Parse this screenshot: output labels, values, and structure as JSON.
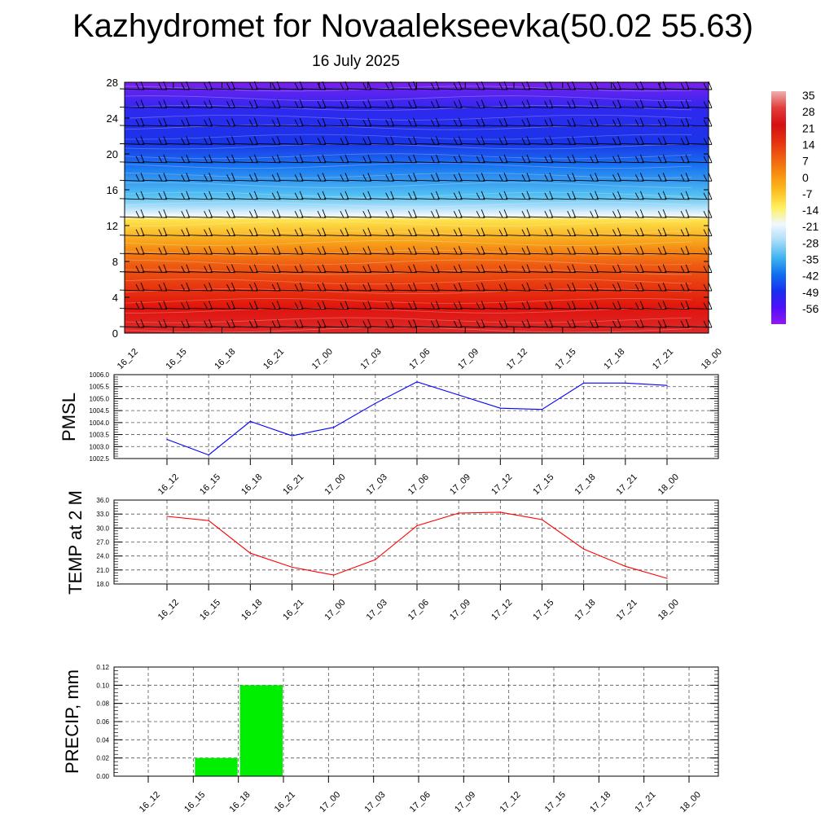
{
  "title": "Kazhydromet for Novaalekseevka(50.02 55.63)",
  "subtitle": "16 July 2025",
  "chart_data": [
    {
      "type": "heatmap",
      "x_ticks": [
        "16_12",
        "16_15",
        "16_18",
        "16_21",
        "17_00",
        "17_03",
        "17_06",
        "17_09",
        "17_12",
        "17_15",
        "17_18",
        "17_21",
        "18_00"
      ],
      "y_ticks": [
        "0",
        "4",
        "8",
        "12",
        "16",
        "20",
        "24",
        "28"
      ],
      "ylim": [
        0,
        28
      ],
      "colorbar": {
        "labels": [
          "35",
          "28",
          "21",
          "14",
          "7",
          "0",
          "-7",
          "-14",
          "-21",
          "-28",
          "-35",
          "-42",
          "-49",
          "-56"
        ],
        "stops": [
          "#f0b0b0",
          "#e33c3c",
          "#d41010",
          "#e43010",
          "#f06010",
          "#f89010",
          "#fcc020",
          "#fff060",
          "#f0f8ff",
          "#a8dcf8",
          "#40b4f0",
          "#1070f0",
          "#1830f0",
          "#5010f8",
          "#9018f0"
        ]
      },
      "layers": [
        {
          "height_ratio": 0.0,
          "color": "#dd2a2a"
        },
        {
          "height_ratio": 0.1,
          "color": "#e0140e"
        },
        {
          "height_ratio": 0.27,
          "color": "#ee5a10"
        },
        {
          "height_ratio": 0.36,
          "color": "#f7a018"
        },
        {
          "height_ratio": 0.45,
          "color": "#fde24a"
        },
        {
          "height_ratio": 0.47,
          "color": "#eef6fe"
        },
        {
          "height_ratio": 0.55,
          "color": "#52c0f2"
        },
        {
          "height_ratio": 0.66,
          "color": "#1a78f0"
        },
        {
          "height_ratio": 0.76,
          "color": "#1a34e8"
        },
        {
          "height_ratio": 0.9,
          "color": "#3028f0"
        },
        {
          "height_ratio": 1.0,
          "color": "#7a20ee"
        }
      ]
    },
    {
      "type": "line",
      "ylabel": "PMSL",
      "x_ticks": [
        "16_12",
        "16_15",
        "16_18",
        "16_21",
        "17_00",
        "17_03",
        "17_06",
        "17_09",
        "17_12",
        "17_15",
        "17_18",
        "17_21",
        "18_00"
      ],
      "y_ticks": [
        "1006.0",
        "1005.5",
        "1005.0",
        "1004.5",
        "1004.0",
        "1003.5",
        "1003.0",
        "1002.5"
      ],
      "ylim": [
        1002.5,
        1006.0
      ],
      "color": "#0000ff",
      "values": [
        1003.3,
        1002.65,
        1004.05,
        1003.45,
        1003.8,
        1004.8,
        1005.7,
        1005.15,
        1004.6,
        1004.55,
        1005.65,
        1005.65,
        1005.55
      ]
    },
    {
      "type": "line",
      "ylabel": "TEMP at 2 M",
      "x_ticks": [
        "16_12",
        "16_15",
        "16_18",
        "16_21",
        "17_00",
        "17_03",
        "17_06",
        "17_09",
        "17_12",
        "17_15",
        "17_18",
        "17_21",
        "18_00"
      ],
      "y_ticks": [
        "36.0",
        "33.0",
        "30.0",
        "27.0",
        "24.0",
        "21.0",
        "18.0"
      ],
      "ylim": [
        18.0,
        36.0
      ],
      "color": "#ff0000",
      "values": [
        32.5,
        31.6,
        24.6,
        21.6,
        19.9,
        23.2,
        30.5,
        33.2,
        33.4,
        31.8,
        25.5,
        21.8,
        19.2
      ]
    },
    {
      "type": "bar",
      "ylabel": "PRECIP, mm",
      "x_ticks": [
        "16_12",
        "16_15",
        "16_18",
        "16_21",
        "17_00",
        "17_03",
        "17_06",
        "17_09",
        "17_12",
        "17_15",
        "17_18",
        "17_21",
        "18_00"
      ],
      "y_ticks": [
        "0.12",
        "0.10",
        "0.08",
        "0.06",
        "0.04",
        "0.02",
        "0.00"
      ],
      "ylim": [
        0,
        0.12
      ],
      "color": "#00ee00",
      "values": [
        0,
        0,
        0.02,
        0.1,
        0,
        0,
        0,
        0,
        0,
        0,
        0,
        0,
        0
      ]
    }
  ]
}
